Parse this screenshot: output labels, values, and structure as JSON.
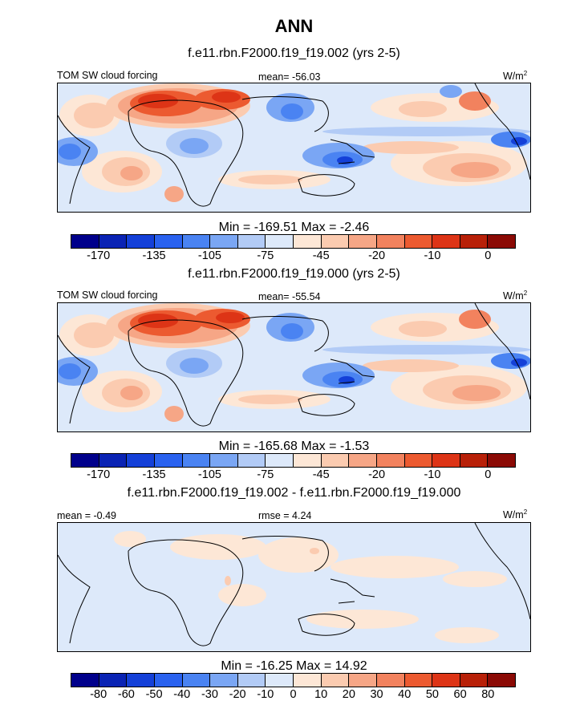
{
  "title": "ANN",
  "panels": [
    {
      "subtitle": "f.e11.rbn.F2000.f19_f19.002 (yrs 2-5)",
      "left_label": "TOM SW cloud forcing",
      "center_label": "mean= -56.03",
      "units": "W/m",
      "units_sup": "2",
      "minmax": "Min = -169.51 Max =  -2.46",
      "colorbar_ticks": [
        "-170",
        "-135",
        "-105",
        "-75",
        "-45",
        "-20",
        "-10",
        "0"
      ],
      "colorbar_colors": [
        "#00008b",
        "#0a23b4",
        "#1440d8",
        "#2a62ef",
        "#4a83f2",
        "#7aa6f4",
        "#b2cbf6",
        "#dde9fa",
        "#fde7d6",
        "#fbcbb0",
        "#f6a686",
        "#f2825e",
        "#ec5a30",
        "#dd3416",
        "#b82008",
        "#8b0a05"
      ]
    },
    {
      "subtitle": "f.e11.rbn.F2000.f19_f19.000 (yrs 2-5)",
      "left_label": "TOM SW cloud forcing",
      "center_label": "mean= -55.54",
      "units": "W/m",
      "units_sup": "2",
      "minmax": "Min = -165.68 Max =  -1.53",
      "colorbar_ticks": [
        "-170",
        "-135",
        "-105",
        "-75",
        "-45",
        "-20",
        "-10",
        "0"
      ],
      "colorbar_colors": [
        "#00008b",
        "#0a23b4",
        "#1440d8",
        "#2a62ef",
        "#4a83f2",
        "#7aa6f4",
        "#b2cbf6",
        "#dde9fa",
        "#fde7d6",
        "#fbcbb0",
        "#f6a686",
        "#f2825e",
        "#ec5a30",
        "#dd3416",
        "#b82008",
        "#8b0a05"
      ]
    },
    {
      "subtitle": "f.e11.rbn.F2000.f19_f19.002 - f.e11.rbn.F2000.f19_f19.000",
      "left_label": "mean =  -0.49",
      "center_label": "rmse =   4.24",
      "units": "W/m",
      "units_sup": "2",
      "minmax": "Min = -16.25 Max =  14.92",
      "colorbar_ticks": [
        "-80",
        "-60",
        "-50",
        "-40",
        "-30",
        "-20",
        "-10",
        "0",
        "10",
        "20",
        "30",
        "40",
        "50",
        "60",
        "80"
      ],
      "colorbar_colors": [
        "#00008b",
        "#0a23b4",
        "#1440d8",
        "#2a62ef",
        "#4a83f2",
        "#7aa6f4",
        "#b2cbf6",
        "#dde9fa",
        "#fde7d6",
        "#fbcbb0",
        "#f6a686",
        "#f2825e",
        "#ec5a30",
        "#dd3416",
        "#b82008",
        "#8b0a05"
      ]
    }
  ]
}
